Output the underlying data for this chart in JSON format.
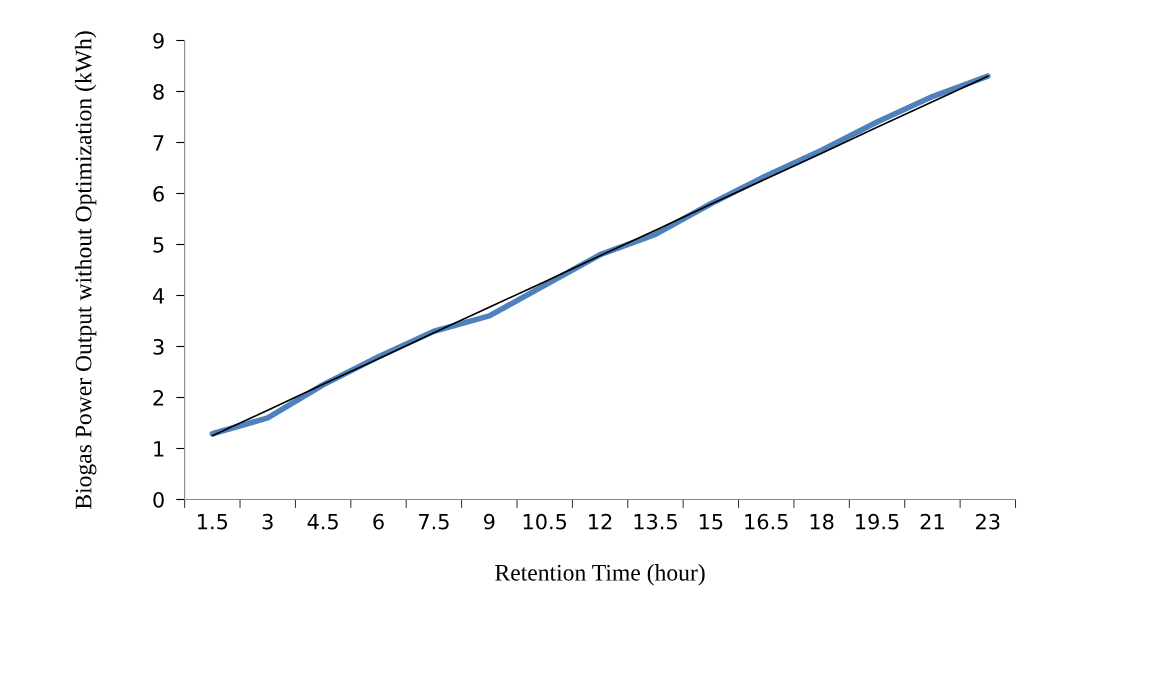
{
  "chart_data": {
    "type": "line",
    "xlabel": "Retention Time (hour)",
    "ylabel": "Biogas Power Output without Optimization (kWh)",
    "categories": [
      "1.5",
      "3",
      "4.5",
      "6",
      "7.5",
      "9",
      "10.5",
      "12",
      "13.5",
      "15",
      "16.5",
      "18",
      "19.5",
      "21",
      "23"
    ],
    "series": [
      {
        "color": "#4f81bd",
        "values": [
          1.29,
          1.6,
          2.25,
          2.8,
          3.3,
          3.6,
          4.2,
          4.8,
          5.2,
          5.8,
          6.35,
          6.85,
          7.4,
          7.9,
          8.3
        ]
      },
      {
        "color": "#000000",
        "values": [
          1.25,
          1.75,
          2.26,
          2.76,
          3.27,
          3.77,
          4.27,
          4.78,
          5.28,
          5.79,
          6.29,
          6.79,
          7.3,
          7.8,
          8.3
        ]
      }
    ],
    "ylim": [
      0,
      9
    ],
    "yticks": [
      0,
      1,
      2,
      3,
      4,
      5,
      6,
      7,
      8,
      9
    ],
    "grid": false,
    "marker": "none",
    "line_style": "solid"
  }
}
